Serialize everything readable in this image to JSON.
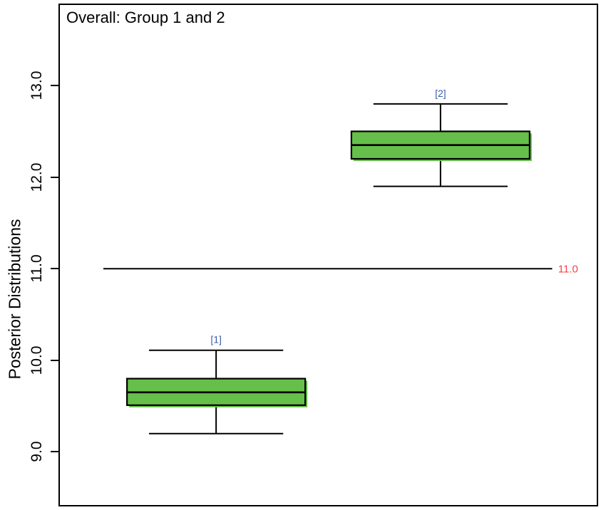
{
  "figure": {
    "background": "#ffffff",
    "border_color": "#000000"
  },
  "chart_data": {
    "type": "boxplot",
    "title": "Overall: Group 1 and 2",
    "xlabel": "",
    "ylabel": "Posterior Distributions",
    "yticks": [
      9.0,
      10.0,
      11.0,
      12.0,
      13.0
    ],
    "ytick_labels": [
      "9.0",
      "10.0",
      "11.0",
      "12.0",
      "13.0"
    ],
    "ylim": [
      8.42,
      13.88
    ],
    "grid": false,
    "orientation": "vertical",
    "groups": [
      {
        "label": "[1]",
        "whisker_low": 9.2,
        "q1": 9.51,
        "median": 9.65,
        "q3": 9.8,
        "whisker_high": 10.11,
        "x_frac": 0.291
      },
      {
        "label": "[2]",
        "whisker_low": 11.9,
        "q1": 12.2,
        "median": 12.35,
        "q3": 12.5,
        "whisker_high": 12.8,
        "x_frac": 0.709
      }
    ],
    "box_width_frac": 0.332,
    "cap_width_frac": 0.25,
    "box_fill": "#66bf4a",
    "box_stroke": "#000000",
    "group_label_color": "#3d5da9",
    "reference_line": {
      "value": 11.0,
      "label": "11.0",
      "color": "#f4424a",
      "x_start_frac": 0.081,
      "x_end_frac": 0.917,
      "label_x_frac": 0.928
    }
  }
}
